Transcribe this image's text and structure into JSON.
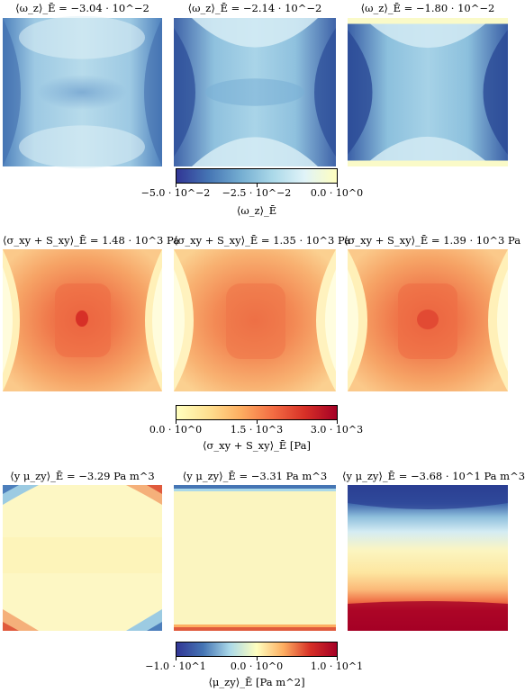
{
  "rows": [
    {
      "titles": [
        "⟨ω_z⟩_Ē = −3.04 · 10^−2",
        "⟨ω_z⟩_Ē = −2.14 · 10^−2",
        "⟨ω_z⟩_Ē = −1.80 · 10^−2"
      ],
      "colorbar": {
        "ticks": [
          "−5.0 · 10^−2",
          "−2.5 · 10^−2",
          "0.0 · 10^0"
        ],
        "label": "⟨ω_z⟩_Ē",
        "colors": [
          "#313695",
          "#4575b4",
          "#74add1",
          "#abd9e9",
          "#e0f3f8",
          "#ffffbf"
        ]
      }
    },
    {
      "titles": [
        "⟨σ_xy + S_xy⟩_Ē = 1.48 · 10^3 Pa",
        "⟨σ_xy + S_xy⟩_Ē = 1.35 · 10^3 Pa",
        "⟨σ_xy + S_xy⟩_Ē = 1.39 · 10^3 Pa"
      ],
      "colorbar": {
        "ticks": [
          "0.0 · 10^0",
          "1.5 · 10^3",
          "3.0 · 10^3"
        ],
        "label": "⟨σ_xy + S_xy⟩_Ē [Pa]",
        "colors": [
          "#ffffbf",
          "#fee090",
          "#fdae61",
          "#f46d43",
          "#d73027",
          "#a50026"
        ]
      }
    },
    {
      "titles": [
        "⟨y μ_zy⟩_Ē = −3.29 Pa m^3",
        "⟨y μ_zy⟩_Ē = −3.31 Pa m^3",
        "⟨y μ_zy⟩_Ē = −3.68 · 10^1 Pa m^3"
      ],
      "colorbar": {
        "ticks": [
          "−1.0 · 10^1",
          "0.0 · 10^0",
          "1.0 · 10^1"
        ],
        "label": "⟨μ_zy⟩_Ē [Pa m^2]",
        "colors": [
          "#313695",
          "#4575b4",
          "#abd9e9",
          "#ffffbf",
          "#fdae61",
          "#d73027",
          "#a50026"
        ]
      }
    }
  ]
}
